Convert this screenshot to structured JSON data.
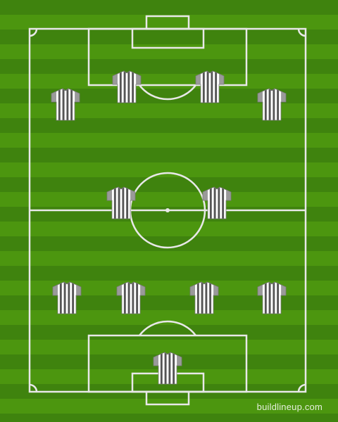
{
  "watermark": "buildlineup.com",
  "colors": {
    "grass_dark": "#3f830e",
    "grass_light": "#4c960f",
    "lines": "#e8e8e8",
    "shirt_stripe_dark": "#555555",
    "shirt_stripe_light": "#ffffff",
    "shirt_sleeve": "#9a9a9a"
  },
  "formation_rows": [
    {
      "row": "attack",
      "players": 4
    },
    {
      "row": "midfield",
      "players": 2
    },
    {
      "row": "defence",
      "players": 4
    },
    {
      "row": "goalkeeper",
      "players": 1
    }
  ],
  "player_icon": "striped-shirt-icon"
}
